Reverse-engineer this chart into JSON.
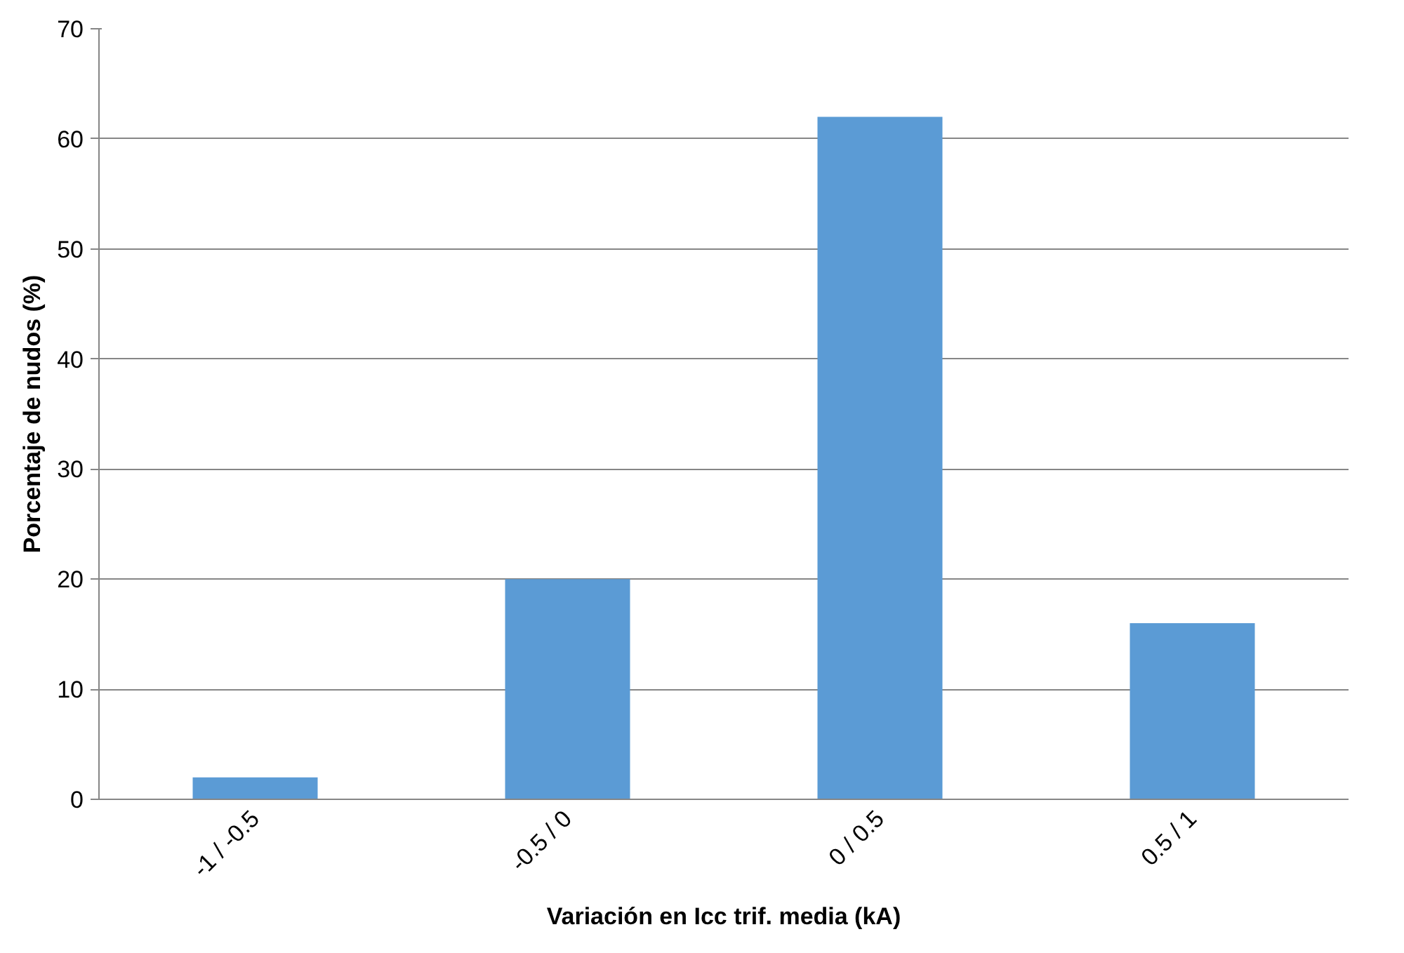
{
  "chart_data": {
    "type": "bar",
    "xlabel": "Variación en Icc trif. media (kA)",
    "ylabel": "Porcentaje de nudos (%)",
    "categories": [
      "-1 / -0.5",
      "-0.5 / 0",
      "0 / 0.5",
      "0.5 / 1"
    ],
    "values": [
      2,
      20,
      62,
      16
    ],
    "color": "#5b9bd5",
    "ylim": [
      0,
      70
    ],
    "yticks": [
      0,
      10,
      20,
      30,
      40,
      50,
      60,
      70
    ],
    "grid": "y"
  }
}
